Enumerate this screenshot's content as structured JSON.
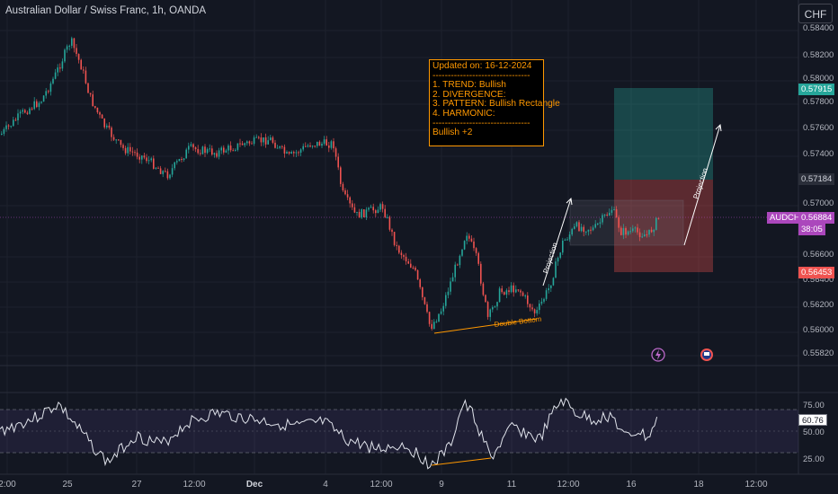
{
  "header": {
    "title": "Australian Dollar / Swiss Franc, 1h, OANDA",
    "currency": "CHF"
  },
  "price_axis": {
    "labels": [
      "0.58400",
      "0.58200",
      "0.58000",
      "0.57800",
      "0.57600",
      "0.57400",
      "0.57000",
      "0.56600",
      "0.56400",
      "0.56200",
      "0.56000",
      "0.55820"
    ],
    "tags": {
      "target": "0.57915",
      "entry": "0.57184",
      "symbol": "AUDCHF",
      "last": "0.56884",
      "countdown": "38:05",
      "stop": "0.56453"
    }
  },
  "time_axis": {
    "labels": [
      "2:00",
      "25",
      "27",
      "12:00",
      "Dec",
      "4",
      "12:00",
      "9",
      "11",
      "12:00",
      "16",
      "18",
      "12:00"
    ]
  },
  "info_box": {
    "updated": "Updated on: 16-12-2024",
    "sep1": "--------------------------------",
    "trend": "1. TREND: Bullish",
    "divergence": "2. DIVERGENCE:",
    "pattern": "3. PATTERN: Bullish Rectangle",
    "harmonic": "4. HARMONIC:",
    "sep2": "--------------------------------",
    "verdict": "Bullish +2"
  },
  "annotations": {
    "double_bottom": "Double Bottom",
    "projection1": "Projection",
    "projection2": "Projection"
  },
  "rsi": {
    "value": "60.76",
    "labels": [
      "75.00",
      "50.00",
      "25.00"
    ]
  },
  "colors": {
    "up": "#26a69a",
    "down": "#ef5350",
    "orange": "#ff9800",
    "rsi_band": "#7e57c2"
  },
  "icons": {
    "event1": "lightning-icon",
    "event2": "flag-icon"
  }
}
